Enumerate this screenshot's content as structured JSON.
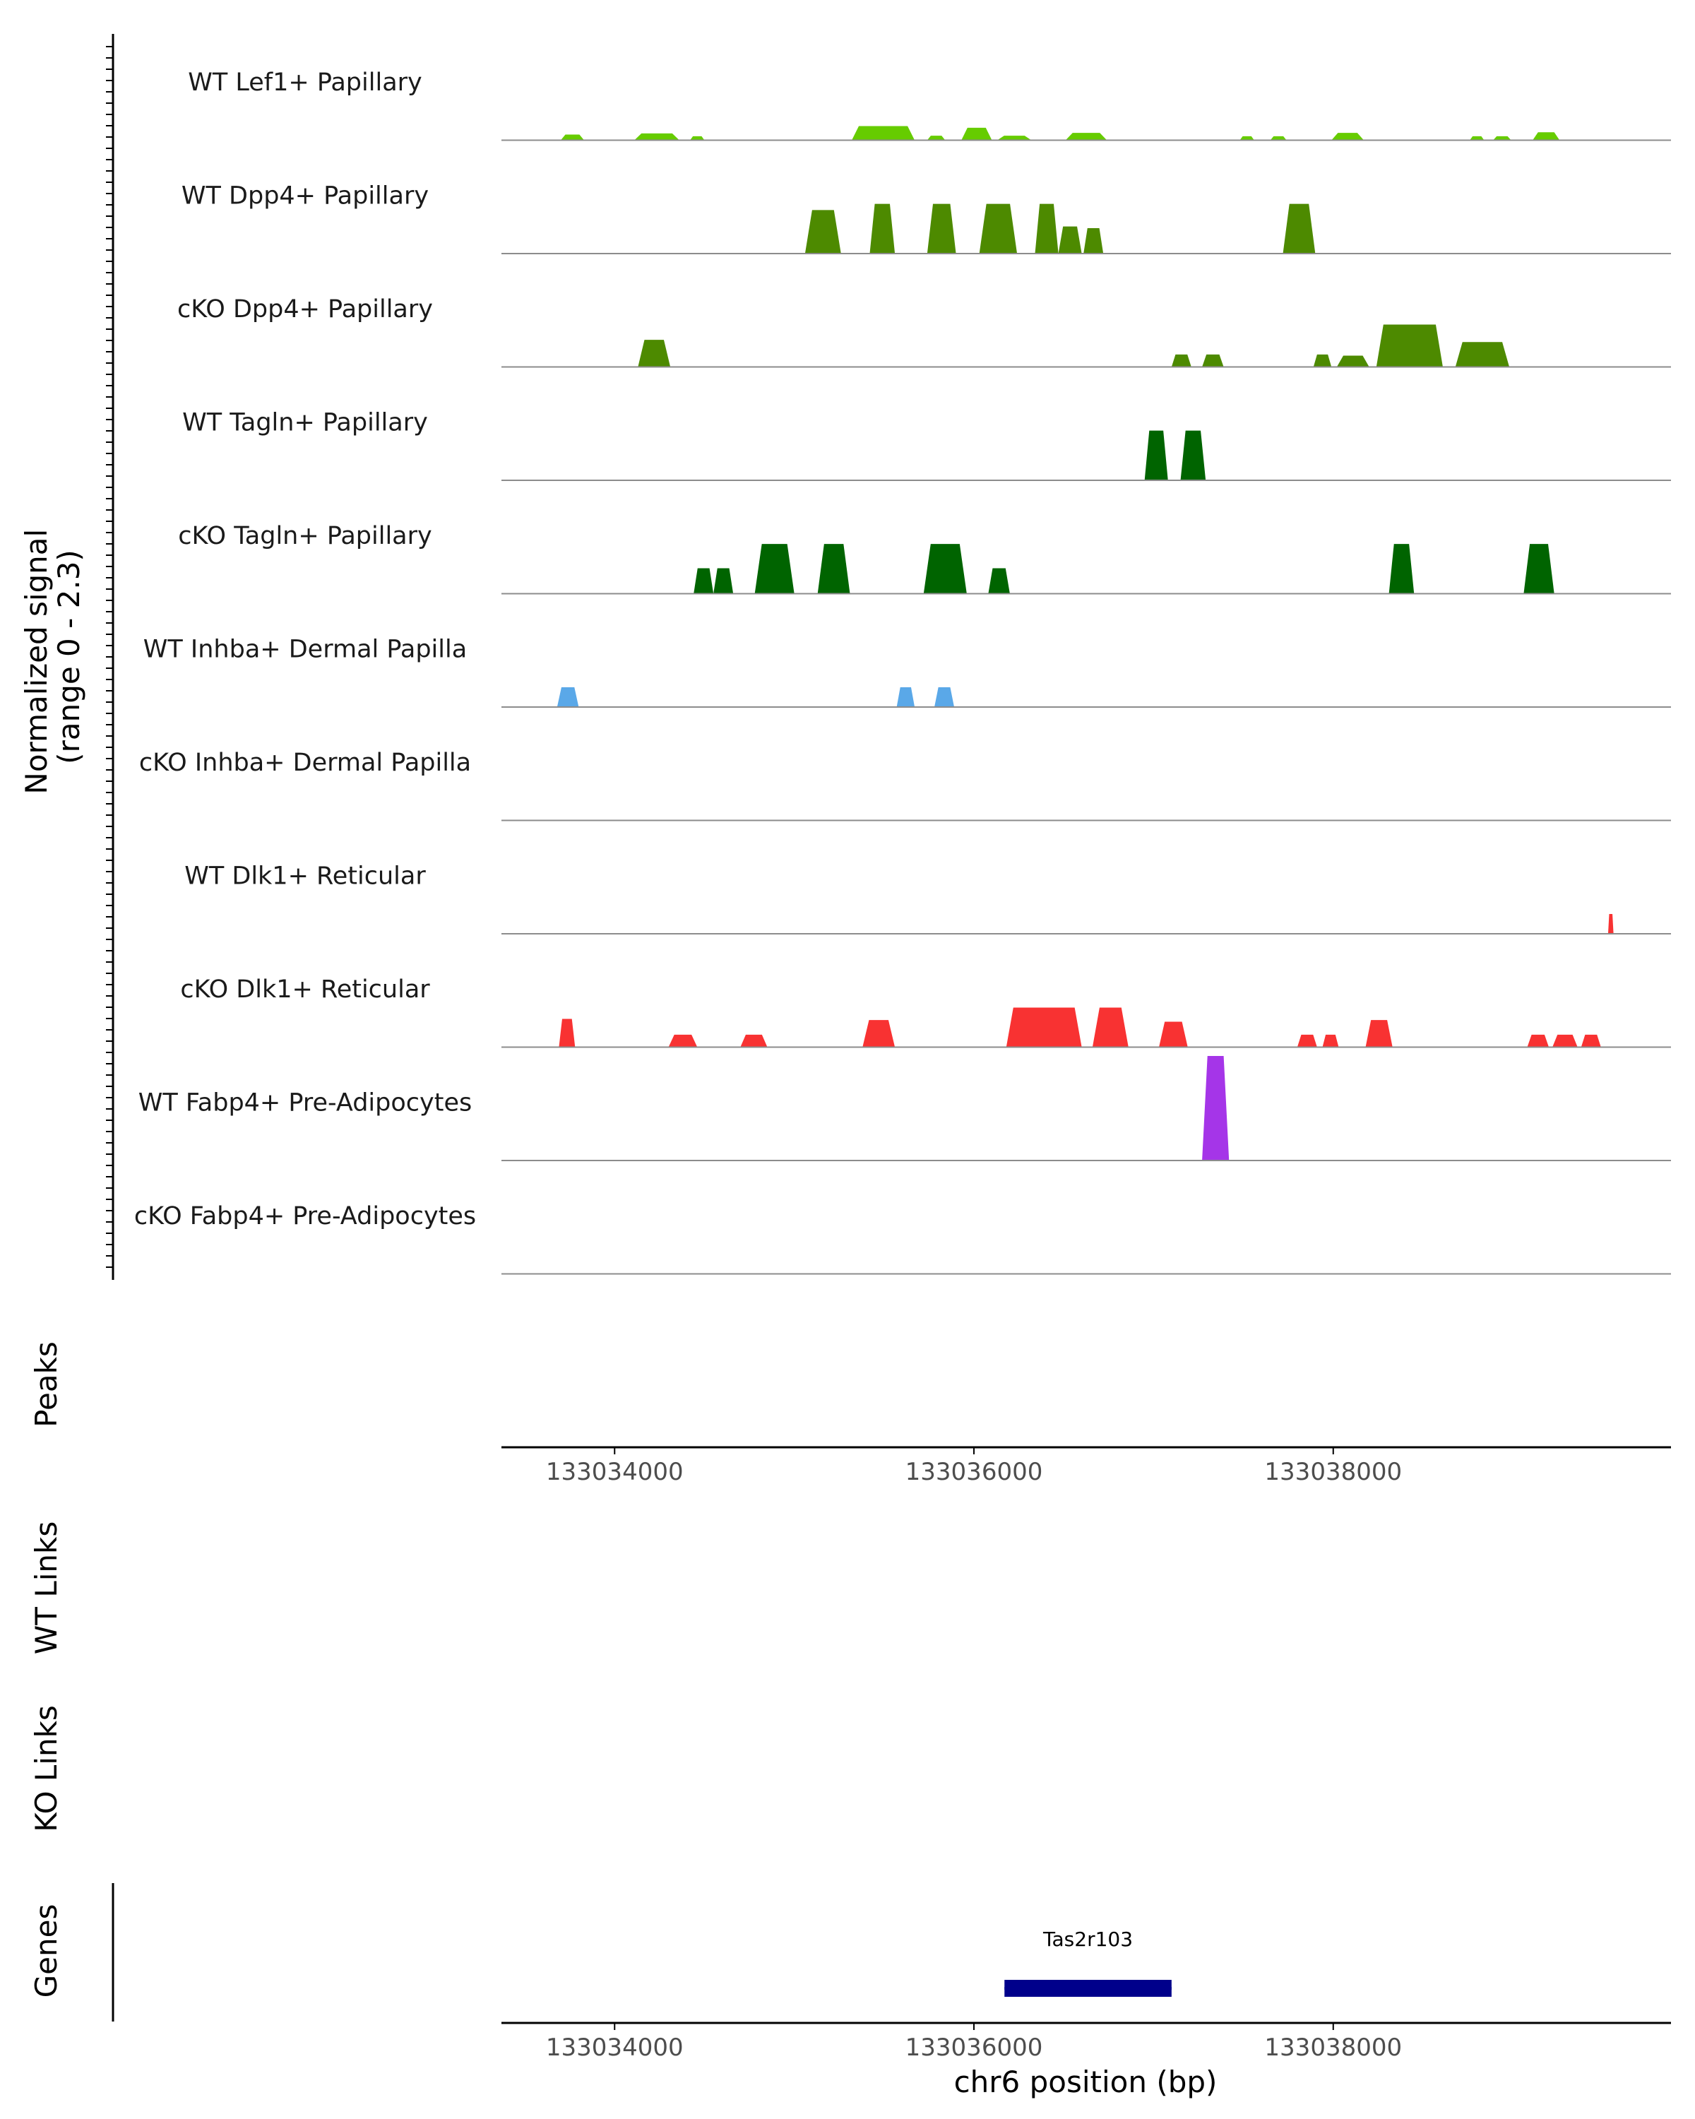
{
  "y_axis_titles": {
    "coverage": [
      "Normalized signal",
      "(range 0 - 2.3)"
    ],
    "peaks": "Peaks",
    "wt_links": "WT Links",
    "ko_links": "KO Links",
    "genes": "Genes"
  },
  "chart_data": {
    "type": "area",
    "title": "",
    "chromosome": "chr6",
    "xlabel": "chr6 position (bp)",
    "xlim": [
      133033370,
      133039880
    ],
    "x_ticks": [
      133034000,
      133036000,
      133038000
    ],
    "x_tick_labels": [
      "133034000",
      "133036000",
      "133038000"
    ],
    "ylim": [
      0,
      2.3
    ],
    "signal_range_label": "range 0 - 2.3",
    "tracks": [
      {
        "name": "WT Lef1+ Papillary",
        "color": "#66cc00",
        "peaks": [
          [
            133033700,
            133033830,
            0.1
          ],
          [
            133034110,
            133034360,
            0.12
          ],
          [
            133034420,
            133034500,
            0.07
          ],
          [
            133035320,
            133035670,
            0.25
          ],
          [
            133035740,
            133035840,
            0.08
          ],
          [
            133035930,
            133036100,
            0.22
          ],
          [
            133036130,
            133036320,
            0.08
          ],
          [
            133036510,
            133036740,
            0.13
          ],
          [
            133037480,
            133037560,
            0.07
          ],
          [
            133037650,
            133037740,
            0.07
          ],
          [
            133037990,
            133038170,
            0.13
          ],
          [
            133038760,
            133038840,
            0.07
          ],
          [
            133038890,
            133038990,
            0.07
          ],
          [
            133039110,
            133039260,
            0.14
          ]
        ]
      },
      {
        "name": "WT Dpp4+ Papillary",
        "color": "#4d8a00",
        "peaks": [
          [
            133035060,
            133035260,
            0.77
          ],
          [
            133035420,
            133035560,
            0.88
          ],
          [
            133035740,
            133035900,
            0.88
          ],
          [
            133036030,
            133036240,
            0.88
          ],
          [
            133036340,
            133036470,
            0.88
          ],
          [
            133036470,
            133036600,
            0.48
          ],
          [
            133036610,
            133036720,
            0.45
          ],
          [
            133037720,
            133037900,
            0.88
          ]
        ]
      },
      {
        "name": "cKO Dpp4+ Papillary",
        "color": "#4d8a00",
        "peaks": [
          [
            133034130,
            133034310,
            0.48
          ],
          [
            133037100,
            133037210,
            0.22
          ],
          [
            133037270,
            133037390,
            0.22
          ],
          [
            133037890,
            133037990,
            0.22
          ],
          [
            133038020,
            133038200,
            0.2
          ],
          [
            133038240,
            133038610,
            0.75
          ],
          [
            133038680,
            133038980,
            0.44
          ]
        ]
      },
      {
        "name": "WT Tagln+ Papillary",
        "color": "#006400",
        "peaks": [
          [
            133036950,
            133037080,
            0.88
          ],
          [
            133037150,
            133037290,
            0.88
          ]
        ]
      },
      {
        "name": "cKO Tagln+ Papillary",
        "color": "#006400",
        "peaks": [
          [
            133034440,
            133034550,
            0.45
          ],
          [
            133034550,
            133034660,
            0.45
          ],
          [
            133034780,
            133035000,
            0.88
          ],
          [
            133035130,
            133035310,
            0.88
          ],
          [
            133035720,
            133035960,
            0.88
          ],
          [
            133036080,
            133036200,
            0.45
          ],
          [
            133038310,
            133038450,
            0.88
          ],
          [
            133039060,
            133039230,
            0.88
          ]
        ]
      },
      {
        "name": "WT Inhba+ Dermal Papilla",
        "color": "#5aa8e8",
        "peaks": [
          [
            133033680,
            133033800,
            0.35
          ],
          [
            133035570,
            133035670,
            0.35
          ],
          [
            133035780,
            133035890,
            0.35
          ]
        ]
      },
      {
        "name": "cKO Inhba+ Dermal Papilla",
        "color": "#5aa8e8",
        "peaks": []
      },
      {
        "name": "WT Dlk1+ Reticular",
        "color": "#f83232",
        "peaks": [
          [
            133039530,
            133039560,
            0.35
          ]
        ]
      },
      {
        "name": "cKO Dlk1+ Reticular",
        "color": "#f83232",
        "peaks": [
          [
            133033690,
            133033780,
            0.5
          ],
          [
            133034300,
            133034460,
            0.22
          ],
          [
            133034700,
            133034850,
            0.22
          ],
          [
            133035380,
            133035560,
            0.48
          ],
          [
            133036180,
            133036600,
            0.7
          ],
          [
            133036660,
            133036860,
            0.7
          ],
          [
            133037030,
            133037190,
            0.45
          ],
          [
            133037800,
            133037910,
            0.22
          ],
          [
            133037940,
            133038030,
            0.22
          ],
          [
            133038180,
            133038330,
            0.48
          ],
          [
            133039080,
            133039200,
            0.22
          ],
          [
            133039220,
            133039360,
            0.22
          ],
          [
            133039380,
            133039490,
            0.22
          ]
        ]
      },
      {
        "name": "WT Fabp4+ Pre-Adipocytes",
        "color": "#a535e8",
        "peaks": [
          [
            133037270,
            133037420,
            1.85
          ]
        ]
      },
      {
        "name": "cKO Fabp4+ Pre-Adipocytes",
        "color": "#a535e8",
        "peaks": []
      }
    ],
    "genes": [
      {
        "name": "Tas2r103",
        "start": 133036170,
        "end": 133037100,
        "color": "#00008b"
      }
    ]
  }
}
